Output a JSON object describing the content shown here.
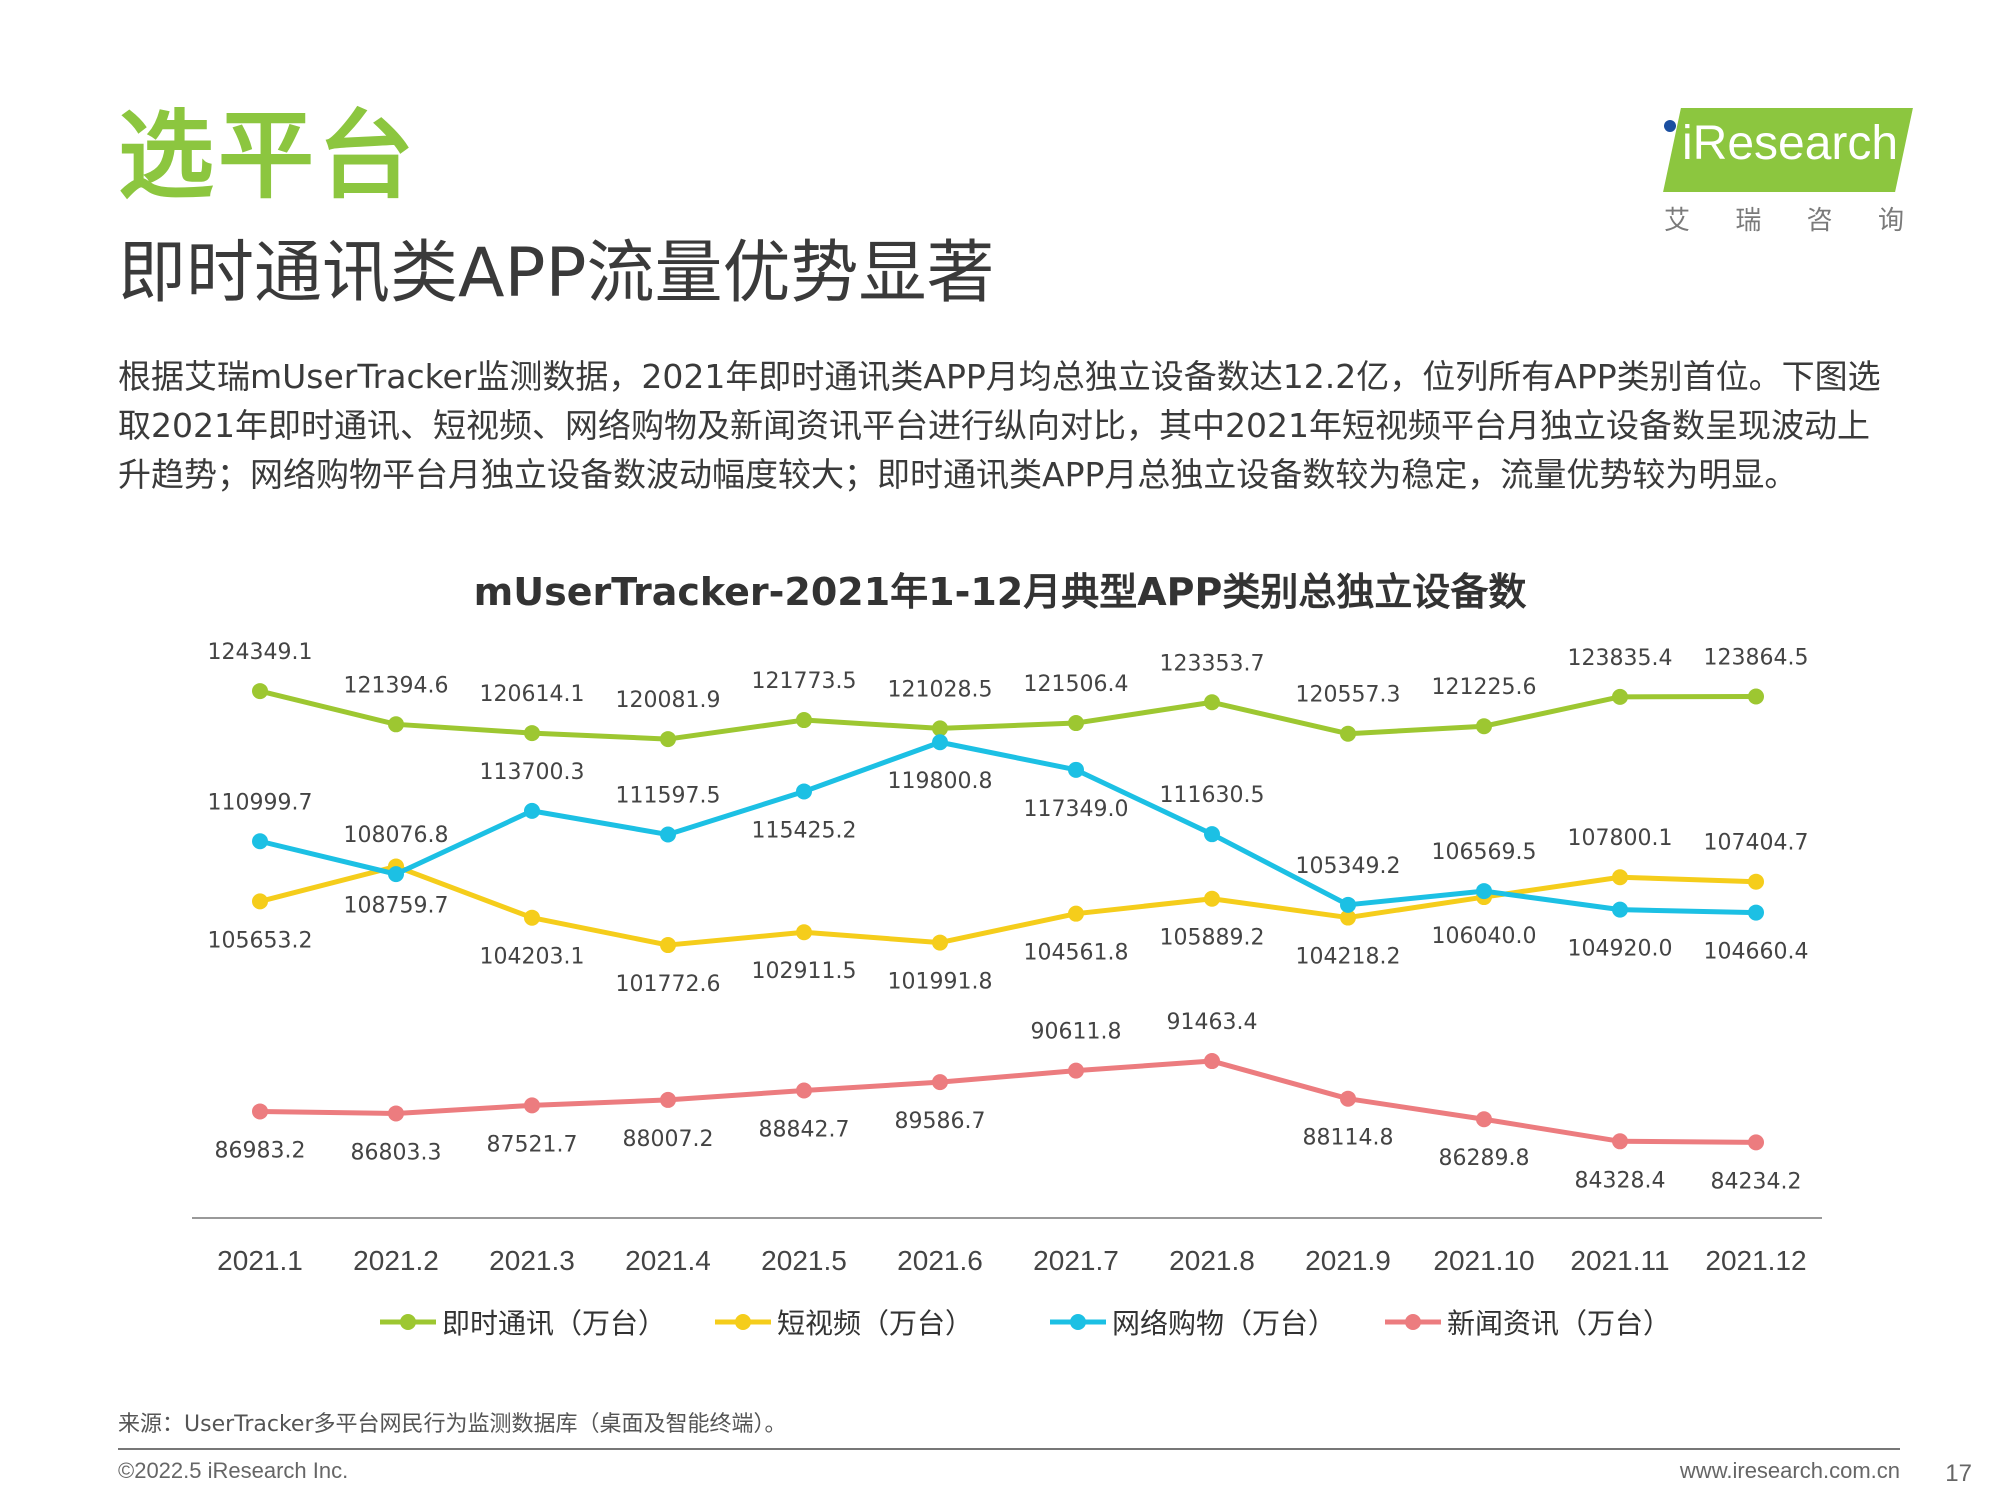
{
  "header": {
    "section_title": "选平台",
    "headline": "即时通讯类APP流量优势显著"
  },
  "logo": {
    "brand": "iResearch",
    "sub_chars": [
      "艾",
      "瑞",
      "咨",
      "询"
    ],
    "accent_color": "#8cc63f"
  },
  "body_text": "根据艾瑞mUserTracker监测数据，2021年即时通讯类APP月均总独立设备数达12.2亿，位列所有APP类别首位。下图选取2021年即时通讯、短视频、网络购物及新闻资讯平台进行纵向对比，其中2021年短视频平台月独立设备数呈现波动上升趋势；网络购物平台月独立设备数波动幅度较大；即时通讯类APP月总独立设备数较为稳定，流量优势较为明显。",
  "chart_data": {
    "type": "line",
    "title": "mUserTracker-2021年1-12月典型APP类别总独立设备数",
    "categories": [
      "2021.1",
      "2021.2",
      "2021.3",
      "2021.4",
      "2021.5",
      "2021.6",
      "2021.7",
      "2021.8",
      "2021.9",
      "2021.10",
      "2021.11",
      "2021.12"
    ],
    "ylim": [
      80000,
      128000
    ],
    "grid": false,
    "legend_position": "bottom",
    "series": [
      {
        "name": "即时通讯（万台）",
        "color": "#9dc731",
        "values": [
          124349.1,
          121394.6,
          120614.1,
          120081.9,
          121773.5,
          121028.5,
          121506.4,
          123353.7,
          120557.3,
          121225.6,
          123835.4,
          123864.5
        ],
        "label_pos": [
          "above",
          "above",
          "above",
          "above",
          "above",
          "above",
          "above",
          "above",
          "above",
          "above",
          "above",
          "above"
        ]
      },
      {
        "name": "短视频（万台）",
        "color": "#f5cd1b",
        "values": [
          105653.2,
          108759.7,
          104203.1,
          101772.6,
          102911.5,
          101991.8,
          104561.8,
          105889.2,
          104218.2,
          106040.0,
          107800.1,
          107404.7
        ],
        "label_pos": [
          "below",
          "below",
          "below",
          "below",
          "below",
          "below",
          "below",
          "below",
          "below",
          "below",
          "above",
          "above"
        ]
      },
      {
        "name": "网络购物（万台）",
        "color": "#1cc0e4",
        "values": [
          110999.7,
          108076.8,
          113700.3,
          111597.5,
          115425.2,
          119800.8,
          117349.0,
          111630.5,
          105349.2,
          106569.5,
          104920.0,
          104660.4
        ],
        "label_pos": [
          "above",
          "above",
          "above",
          "above",
          "below",
          "below",
          "below",
          "above",
          "above",
          "above",
          "below",
          "below"
        ]
      },
      {
        "name": "新闻资讯（万台）",
        "color": "#ec7c7f",
        "values": [
          86983.2,
          86803.3,
          87521.7,
          88007.2,
          88842.7,
          89586.7,
          90611.8,
          91463.4,
          88114.8,
          86289.8,
          84328.4,
          84234.2
        ],
        "label_pos": [
          "below",
          "below",
          "below",
          "below",
          "below",
          "below",
          "above",
          "above",
          "below",
          "below",
          "below",
          "below"
        ]
      }
    ]
  },
  "footer": {
    "source": "来源：UserTracker多平台网民行为监测数据库（桌面及智能终端）。",
    "copyright": "©2022.5 iResearch Inc.",
    "url": "www.iresearch.com.cn",
    "page_number": "17"
  }
}
